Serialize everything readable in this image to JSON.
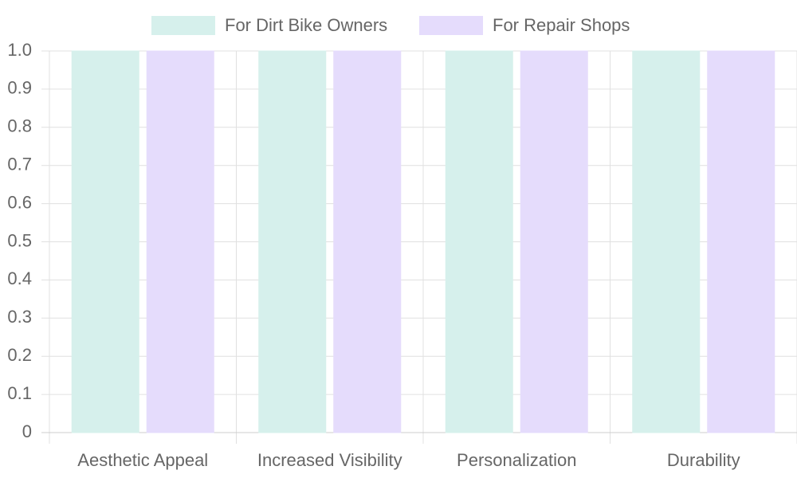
{
  "chart_data": {
    "type": "bar",
    "categories": [
      "Aesthetic Appeal",
      "Increased Visibility",
      "Personalization",
      "Durability"
    ],
    "series": [
      {
        "name": "For Dirt Bike Owners",
        "color": "#d6f0ec",
        "values": [
          1,
          1,
          1,
          1
        ]
      },
      {
        "name": "For Repair Shops",
        "color": "#e5dcfc",
        "values": [
          1,
          1,
          1,
          1
        ]
      }
    ],
    "ylim": [
      0,
      1
    ],
    "yticks": [
      0,
      0.1,
      0.2,
      0.3,
      0.4,
      0.5,
      0.6,
      0.7,
      0.8,
      0.9,
      {
        "value": 1,
        "label": "1.0"
      }
    ],
    "grid": true
  }
}
